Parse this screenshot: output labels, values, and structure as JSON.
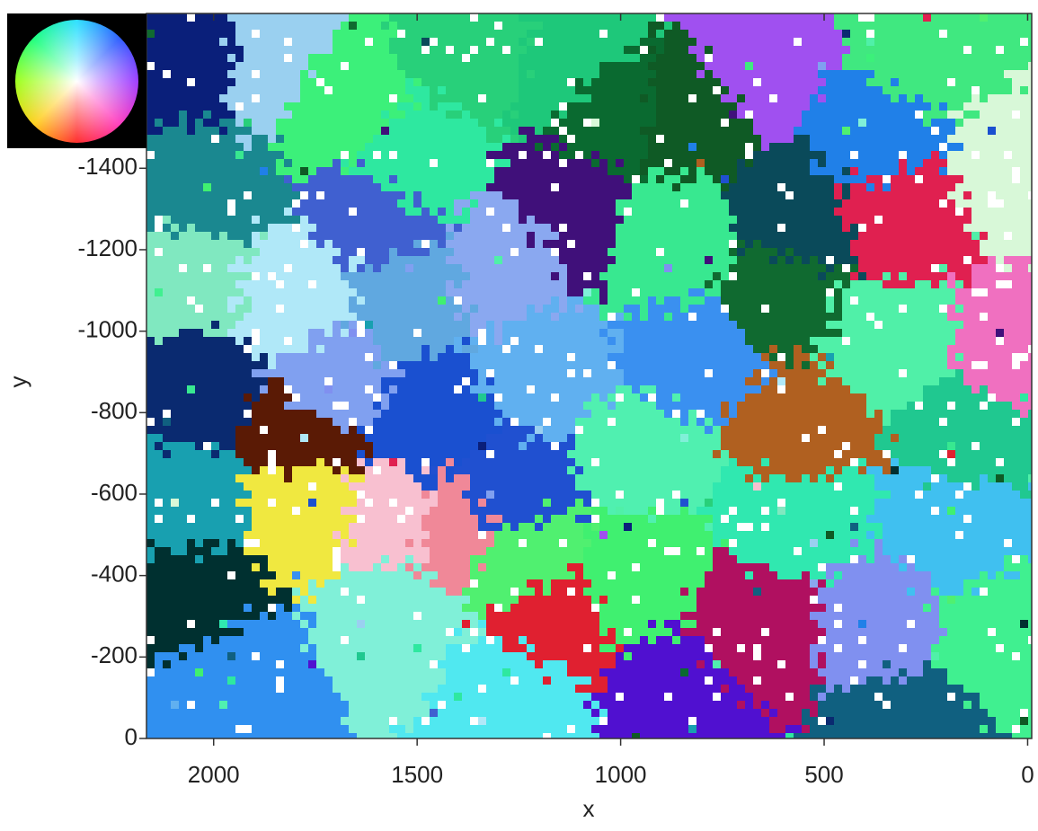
{
  "chart_data": {
    "type": "image",
    "xlabel": "x",
    "ylabel": "y",
    "xlim": [
      2165,
      -10
    ],
    "ylim": [
      0,
      -1780
    ],
    "xticks": [
      2000,
      1500,
      1000,
      500,
      0
    ],
    "yticks": [
      0,
      -200,
      -400,
      -600,
      -800,
      -1000,
      -1200,
      -1400
    ]
  }
}
